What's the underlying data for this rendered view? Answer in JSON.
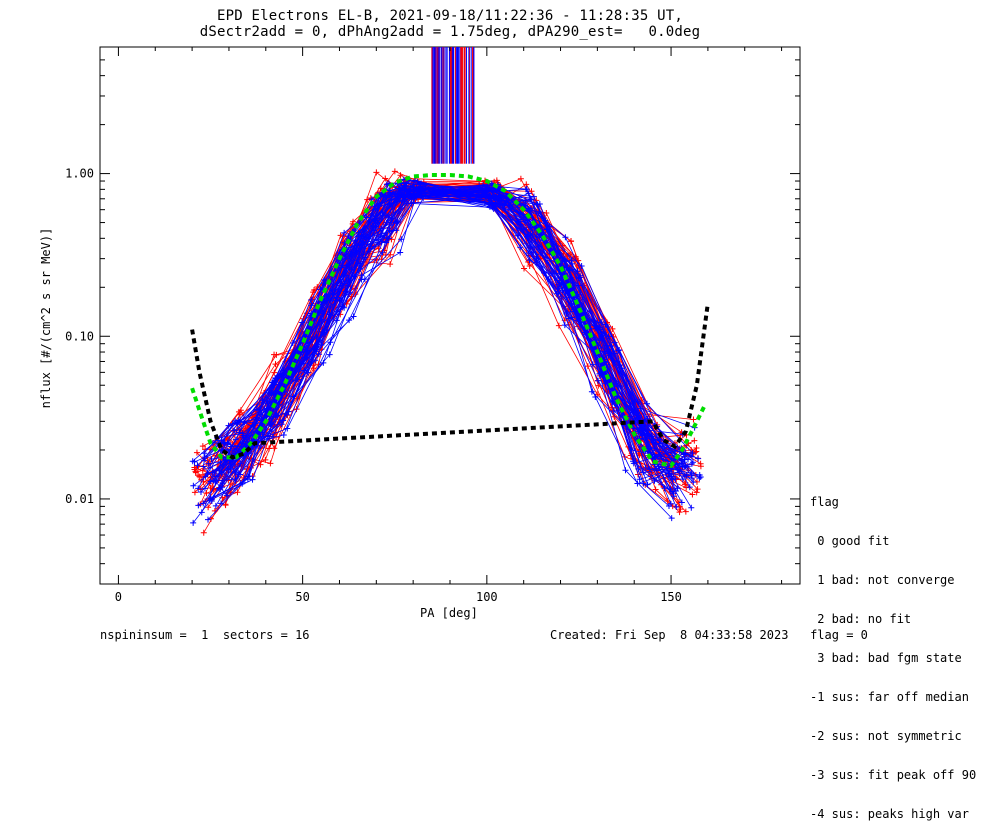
{
  "title": "EPD Electrons EL-B, 2021-09-18/11:22:36 - 11:28:35 UT,",
  "subtitle": "dSectr2add = 0, dPhAng2add = 1.75deg, dPA290_est=   0.0deg",
  "chart_data": {
    "type": "scatter",
    "xlabel": "PA [deg]",
    "ylabel": "nflux [#/(cm^2 s sr MeV)]",
    "xlim": [
      -5,
      185
    ],
    "ylim": [
      0.003,
      6
    ],
    "yscale": "log",
    "x_ticks": [
      0,
      50,
      100,
      150
    ],
    "x_tick_labels": [
      "0",
      "50",
      "100",
      "150"
    ],
    "y_ticks": [
      0.01,
      0.1,
      1.0
    ],
    "y_tick_labels": [
      "0.01",
      "0.10",
      "1.00"
    ],
    "series": [
      {
        "color": "#ff0000",
        "style": "line-plus",
        "x": [
          22,
          30,
          40,
          50,
          60,
          70,
          80,
          90,
          100,
          110,
          120,
          130,
          140,
          150,
          158
        ],
        "y": [
          0.012,
          0.018,
          0.03,
          0.09,
          0.25,
          0.55,
          0.9,
          0.97,
          0.88,
          0.6,
          0.3,
          0.1,
          0.03,
          0.014,
          0.02
        ]
      },
      {
        "color": "#0000ff",
        "style": "line-plus",
        "x": [
          22,
          30,
          40,
          50,
          60,
          70,
          80,
          90,
          100,
          110,
          120,
          130,
          140,
          150,
          158
        ],
        "y": [
          0.011,
          0.017,
          0.028,
          0.08,
          0.22,
          0.5,
          0.88,
          0.98,
          0.85,
          0.55,
          0.28,
          0.09,
          0.028,
          0.013,
          0.019
        ]
      },
      {
        "color": "#00dd00",
        "style": "dashed",
        "x": [
          20,
          22,
          25,
          28,
          32,
          36,
          40,
          45,
          50,
          55,
          60,
          65,
          70,
          75,
          80,
          85,
          90,
          95,
          100,
          105,
          110,
          115,
          120,
          125,
          130,
          135,
          140,
          145,
          150,
          153,
          156,
          159
        ],
        "y": [
          0.048,
          0.035,
          0.022,
          0.018,
          0.018,
          0.022,
          0.03,
          0.05,
          0.09,
          0.17,
          0.3,
          0.5,
          0.72,
          0.88,
          0.96,
          0.98,
          0.98,
          0.96,
          0.9,
          0.78,
          0.6,
          0.42,
          0.27,
          0.15,
          0.08,
          0.042,
          0.025,
          0.017,
          0.016,
          0.02,
          0.027,
          0.037
        ]
      },
      {
        "color": "#000000",
        "style": "dashed",
        "x": [
          20,
          22,
          25,
          28,
          31,
          34,
          37,
          145,
          148,
          151,
          154,
          157,
          160
        ],
        "y": [
          0.11,
          0.06,
          0.03,
          0.02,
          0.018,
          0.019,
          0.022,
          0.03,
          0.023,
          0.021,
          0.026,
          0.05,
          0.16
        ]
      }
    ]
  },
  "legend": {
    "title": "flag",
    "items": [
      " 0 good fit",
      " 1 bad: not converge",
      " 2 bad: no fit",
      " 3 bad: bad fgm state",
      "-1 sus: far off median",
      "-2 sus: not symmetric",
      "-3 sus: fit peak off 90",
      "-4 sus: peaks high var"
    ]
  },
  "footer": {
    "left": "nspininsum =  1  sectors = 16",
    "right": "Created: Fri Sep  8 04:33:58 2023   flag = 0"
  }
}
